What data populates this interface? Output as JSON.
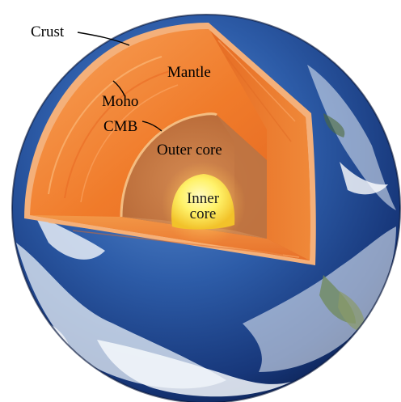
{
  "labels": {
    "crust": "Crust",
    "mantle": "Mantle",
    "moho": "Moho",
    "cmb": "CMB",
    "outer_core": "Outer core",
    "inner_core_line1": "Inner",
    "inner_core_line2": "core"
  },
  "colors": {
    "ocean_light": "#3f78c4",
    "ocean_dark": "#0a1f52",
    "crust": "#f3a66e",
    "mantle_light": "#f5892e",
    "mantle_dark": "#d9561a",
    "outer_core": "#c9804a",
    "inner_core": "#fff06a",
    "cloud": "#f2f6fb"
  }
}
